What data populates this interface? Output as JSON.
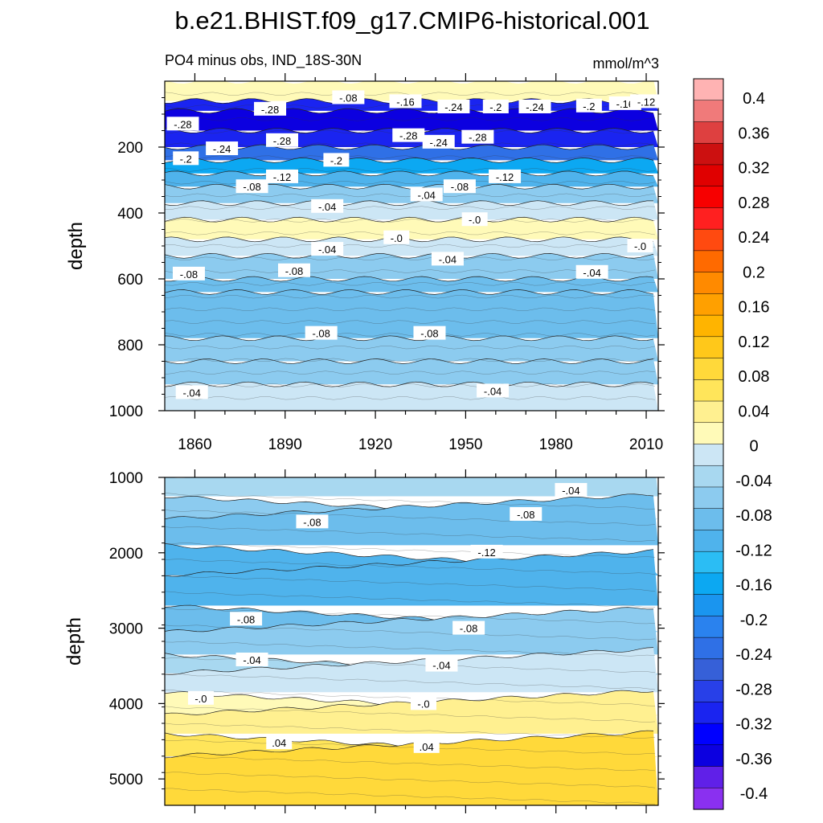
{
  "chart_data": {
    "type": "heatmap",
    "title": "b.e21.BHIST.f09_g17.CMIP6-historical.001",
    "subtitle_left": "PO4 minus obs, IND_18S-30N",
    "units": "mmol/m^3",
    "panels": [
      {
        "name": "upper",
        "ylabel": "depth",
        "ylim": [
          0,
          1000
        ],
        "yticks": [
          "200",
          "400",
          "600",
          "800",
          "1000"
        ],
        "xlim": [
          1850,
          2014
        ],
        "xticks": [
          "1860",
          "1890",
          "1920",
          "1950",
          "1980",
          "2010"
        ],
        "bands": [
          {
            "depth_top": 0,
            "value": 0.02
          },
          {
            "depth_top": 60,
            "value": -0.3
          },
          {
            "depth_top": 90,
            "value": -0.33
          },
          {
            "depth_top": 150,
            "value": -0.3
          },
          {
            "depth_top": 200,
            "value": -0.22
          },
          {
            "depth_top": 240,
            "value": -0.15
          },
          {
            "depth_top": 280,
            "value": -0.1
          },
          {
            "depth_top": 320,
            "value": -0.06
          },
          {
            "depth_top": 370,
            "value": -0.03
          },
          {
            "depth_top": 420,
            "value": 0.01
          },
          {
            "depth_top": 480,
            "value": -0.02
          },
          {
            "depth_top": 530,
            "value": -0.05
          },
          {
            "depth_top": 600,
            "value": -0.08
          },
          {
            "depth_top": 640,
            "value": -0.09
          },
          {
            "depth_top": 780,
            "value": -0.07
          },
          {
            "depth_top": 850,
            "value": -0.05
          },
          {
            "depth_top": 920,
            "value": -0.03
          }
        ],
        "contour_labels": [
          {
            "text": "-.08",
            "year": 1911,
            "depth": 50
          },
          {
            "text": "-.16",
            "year": 1930,
            "depth": 62
          },
          {
            "text": "-.24",
            "year": 1946,
            "depth": 78
          },
          {
            "text": "-.2",
            "year": 1960,
            "depth": 78
          },
          {
            "text": "-.24",
            "year": 1973,
            "depth": 78
          },
          {
            "text": "-.2",
            "year": 1991,
            "depth": 75
          },
          {
            "text": "-.16",
            "year": 2003,
            "depth": 68
          },
          {
            "text": "-.12",
            "year": 2010,
            "depth": 62
          },
          {
            "text": "-.28",
            "year": 1885,
            "depth": 85
          },
          {
            "text": "-.28",
            "year": 1856,
            "depth": 130
          },
          {
            "text": "-.28",
            "year": 1889,
            "depth": 180
          },
          {
            "text": "-.28",
            "year": 1931,
            "depth": 165
          },
          {
            "text": "-.24",
            "year": 1941,
            "depth": 185
          },
          {
            "text": "-.28",
            "year": 1954,
            "depth": 170
          },
          {
            "text": "-.24",
            "year": 1869,
            "depth": 205
          },
          {
            "text": "-.2",
            "year": 1857,
            "depth": 235
          },
          {
            "text": "-.2",
            "year": 1907,
            "depth": 240
          },
          {
            "text": "-.12",
            "year": 1889,
            "depth": 290
          },
          {
            "text": "-.12",
            "year": 1963,
            "depth": 290
          },
          {
            "text": "-.08",
            "year": 1879,
            "depth": 320
          },
          {
            "text": "-.08",
            "year": 1948,
            "depth": 320
          },
          {
            "text": "-.04",
            "year": 1937,
            "depth": 345
          },
          {
            "text": "-.04",
            "year": 1904,
            "depth": 380
          },
          {
            "text": "-.0",
            "year": 1953,
            "depth": 420
          },
          {
            "text": "-.0",
            "year": 1927,
            "depth": 475
          },
          {
            "text": "-.04",
            "year": 1904,
            "depth": 510
          },
          {
            "text": "-.04",
            "year": 1944,
            "depth": 540
          },
          {
            "text": "-.0",
            "year": 2008,
            "depth": 500
          },
          {
            "text": "-.08",
            "year": 1893,
            "depth": 575
          },
          {
            "text": "-.08",
            "year": 1858,
            "depth": 585
          },
          {
            "text": "-.04",
            "year": 1992,
            "depth": 580
          },
          {
            "text": "-.08",
            "year": 1902,
            "depth": 765
          },
          {
            "text": "-.08",
            "year": 1938,
            "depth": 765
          },
          {
            "text": "-.04",
            "year": 1859,
            "depth": 945
          },
          {
            "text": "-.04",
            "year": 1959,
            "depth": 940
          }
        ]
      },
      {
        "name": "lower",
        "ylabel": "depth",
        "ylim": [
          1000,
          5350
        ],
        "yticks": [
          "1000",
          "2000",
          "3000",
          "4000",
          "5000"
        ],
        "xlim": [
          1850,
          2014
        ],
        "bands": [
          {
            "depth_top": 1000,
            "value": -0.04
          },
          {
            "depth_top": 1250,
            "value": -0.06
          },
          {
            "depth_top": 1550,
            "value": -0.09
          },
          {
            "depth_top": 1900,
            "value": -0.115
          },
          {
            "depth_top": 2300,
            "value": -0.1
          },
          {
            "depth_top": 2700,
            "value": -0.085
          },
          {
            "depth_top": 3050,
            "value": -0.065
          },
          {
            "depth_top": 3350,
            "value": -0.045
          },
          {
            "depth_top": 3600,
            "value": -0.03
          },
          {
            "depth_top": 3850,
            "value": 0.01
          },
          {
            "depth_top": 4150,
            "value": 0.03
          },
          {
            "depth_top": 4400,
            "value": 0.05
          },
          {
            "depth_top": 4700,
            "value": 0.075
          }
        ],
        "contour_labels": [
          {
            "text": "-.04",
            "year": 1985,
            "depth": 1170
          },
          {
            "text": "-.08",
            "year": 1899,
            "depth": 1590
          },
          {
            "text": "-.08",
            "year": 1970,
            "depth": 1490
          },
          {
            "text": "-.12",
            "year": 1957,
            "depth": 1990
          },
          {
            "text": "-.08",
            "year": 1877,
            "depth": 2880
          },
          {
            "text": "-.08",
            "year": 1951,
            "depth": 3000
          },
          {
            "text": "-.04",
            "year": 1879,
            "depth": 3420
          },
          {
            "text": "-.04",
            "year": 1942,
            "depth": 3490
          },
          {
            "text": "-.0",
            "year": 1862,
            "depth": 3930
          },
          {
            "text": "-.0",
            "year": 1936,
            "depth": 4000
          },
          {
            "text": ".04",
            "year": 1888,
            "depth": 4520
          },
          {
            "text": ".04",
            "year": 1937,
            "depth": 4570
          }
        ]
      }
    ],
    "colorbar": {
      "labels": [
        "0.4",
        "0.36",
        "0.32",
        "0.28",
        "0.24",
        "0.2",
        "0.16",
        "0.12",
        "0.08",
        "0.04",
        "0",
        "-0.04",
        "-0.08",
        "-0.12",
        "-0.16",
        "-0.2",
        "-0.24",
        "-0.28",
        "-0.32",
        "-0.36",
        "-0.4"
      ],
      "colors": [
        "#ffb3b3",
        "#f07a7a",
        "#de4040",
        "#cc1010",
        "#e00000",
        "#f70000",
        "#ff2020",
        "#ff4a10",
        "#ff6a00",
        "#ff8a00",
        "#ffa000",
        "#ffb400",
        "#ffc81a",
        "#ffd93a",
        "#ffe55a",
        "#fff090",
        "#fffab8",
        "#cce6f5",
        "#a8d8f0",
        "#8ccbef",
        "#6cbdec",
        "#4fb3ec",
        "#2bbdf4",
        "#0ca8f2",
        "#1a95ef",
        "#2a82ee",
        "#2f70e6",
        "#3660d8",
        "#2840e8",
        "#1a24f0",
        "#0000ff",
        "#0c00e0",
        "#6020e8",
        "#8a30f0"
      ]
    }
  }
}
